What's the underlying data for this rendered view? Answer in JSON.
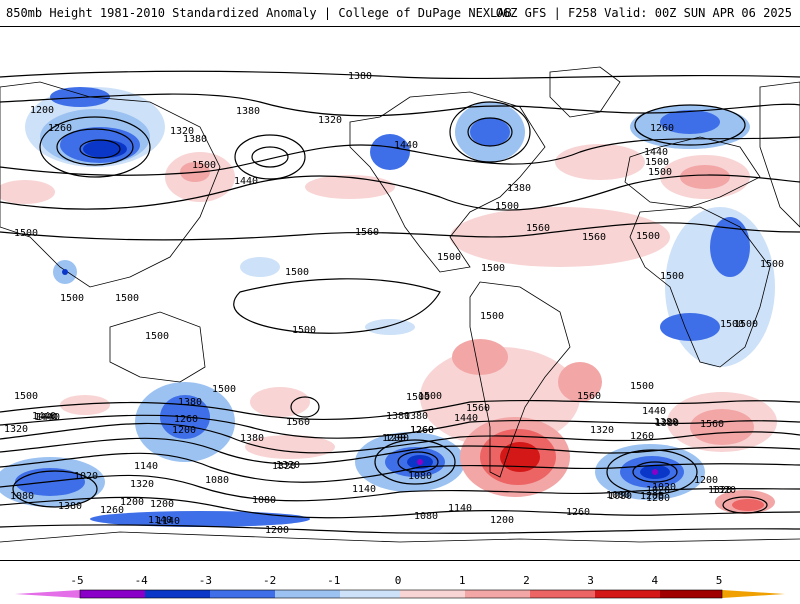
{
  "header": {
    "title": "850mb Height 1981-2010 Standardized Anomaly | College of DuPage NEXLAB",
    "run_info": "06Z GFS | F258 Valid: 00Z SUN APR 06 2025"
  },
  "colors": {
    "neg5": "#e36ee8",
    "neg4": "#8a00c9",
    "neg3": "#0a37c8",
    "neg2": "#3f6fe8",
    "neg1": "#9cc2f2",
    "neg05": "#cde1f8",
    "pos05": "#f8d4d4",
    "pos1": "#f2a6a6",
    "pos2": "#ec6464",
    "pos3": "#d41818",
    "pos4": "#a00000",
    "pos5": "#f0a000",
    "contour": "#000000"
  },
  "contour_labels": [
    "1200",
    "1380",
    "1260",
    "1320",
    "1380",
    "1320",
    "1500",
    "1380",
    "1440",
    "1500",
    "1380",
    "1440",
    "1500",
    "1560",
    "1500",
    "1560",
    "1560",
    "1500",
    "1500",
    "1500",
    "1500",
    "1500",
    "1500",
    "1500",
    "1500",
    "1440",
    "1440",
    "1380",
    "1320",
    "1260",
    "1200",
    "1140",
    "1080",
    "1020",
    "1320",
    "1380",
    "1200",
    "1260",
    "1140",
    "1080",
    "1380",
    "1260",
    "1140",
    "1200",
    "1500",
    "1560",
    "1440",
    "1380",
    "1320",
    "1260",
    "1200",
    "1020",
    "1080",
    "1200",
    "1320",
    "1380",
    "1500",
    "1560",
    "1500",
    "1500",
    "1440",
    "1380",
    "1260",
    "1320",
    "1200",
    "1080",
    "1140",
    "1200",
    "1260",
    "1200",
    "1080",
    "1140",
    "1200",
    "1020",
    "1080",
    "1200",
    "1080",
    "1320",
    "1500",
    "1560",
    "1500",
    "1380",
    "1320",
    "1500",
    "1440",
    "1500",
    "1440",
    "1260",
    "1500",
    "1500",
    "1560",
    "1500"
  ],
  "colorbar": {
    "ticks": [
      "-5",
      "-4",
      "-3",
      "-2",
      "-1",
      "0",
      "1",
      "2",
      "3",
      "4",
      "5"
    ],
    "units": "standardized anomaly"
  }
}
